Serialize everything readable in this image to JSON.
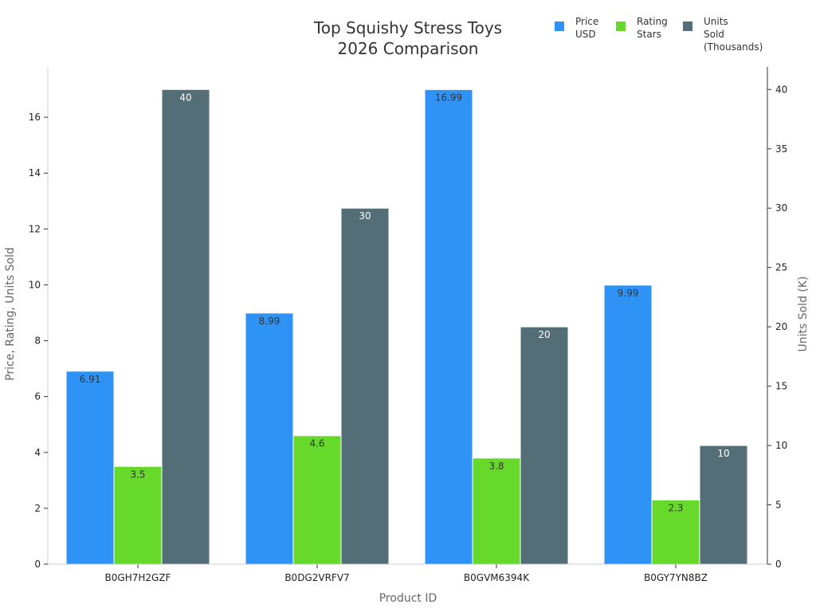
{
  "chart_data": {
    "type": "bar",
    "title_lines": [
      "Top Squishy Stress Toys",
      "2026 Comparison"
    ],
    "xlabel": "Product ID",
    "ylabel": "Price, Rating, Units Sold",
    "y2label": "Units Sold (K)",
    "categories": [
      "B0GH7H2GZF",
      "B0DG2VRFV7",
      "B0GVM6394K",
      "B0GY7YN8BZ"
    ],
    "ylim": [
      0,
      17.8
    ],
    "y2lim": [
      0,
      41.9
    ],
    "yticks": [
      0,
      2,
      4,
      6,
      8,
      10,
      12,
      14,
      16
    ],
    "y2ticks": [
      0,
      5,
      10,
      15,
      20,
      25,
      30,
      35,
      40
    ],
    "grid": false,
    "legend_position": "top-right",
    "series": [
      {
        "name": "Price USD",
        "legend_label": "Price\nUSD",
        "axis": "left",
        "color": "#2F93F6",
        "values": [
          6.91,
          8.99,
          16.99,
          9.99
        ],
        "labels": [
          "6.91",
          "8.99",
          "16.99",
          "9.99"
        ],
        "label_color": "#333333"
      },
      {
        "name": "Rating Stars",
        "legend_label": "Rating\nStars",
        "axis": "left",
        "color": "#66D92A",
        "values": [
          3.5,
          4.6,
          3.8,
          2.3
        ],
        "labels": [
          "3.5",
          "4.6",
          "3.8",
          "2.3"
        ],
        "label_color": "#333333"
      },
      {
        "name": "Units Sold (Thousands)",
        "legend_label": "Units\nSold\n(Thousands)",
        "axis": "right",
        "color": "#546E77",
        "values": [
          40,
          30,
          20,
          10
        ],
        "labels": [
          "40",
          "30",
          "20",
          "10"
        ],
        "label_color": "#ffffff"
      }
    ]
  }
}
